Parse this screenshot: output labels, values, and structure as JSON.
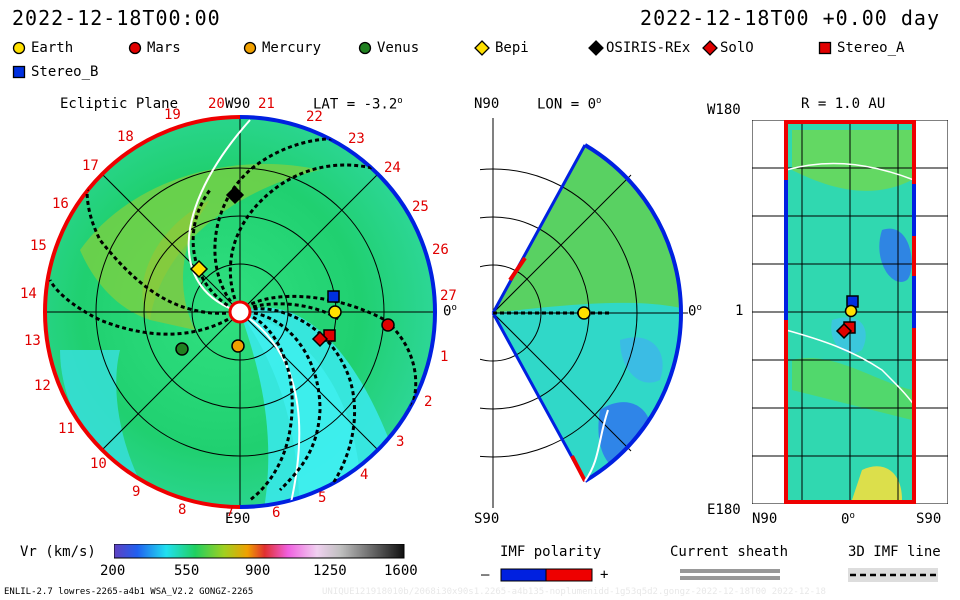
{
  "header": {
    "left_datetime": "2022-12-18T00:00",
    "right_datetime": "2022-12-18T00 +0.00 day"
  },
  "legend": {
    "items": [
      {
        "label": "Earth",
        "marker": "circle",
        "color": "#ffe000"
      },
      {
        "label": "Mars",
        "marker": "circle",
        "color": "#e00000"
      },
      {
        "label": "Mercury",
        "marker": "circle",
        "color": "#f0a000"
      },
      {
        "label": "Venus",
        "marker": "circle",
        "color": "#208020"
      },
      {
        "label": "Bepi",
        "marker": "diamond",
        "color": "#ffe000"
      },
      {
        "label": "OSIRIS-REx",
        "marker": "diamond",
        "color": "#000000"
      },
      {
        "label": "SolO",
        "marker": "diamond",
        "color": "#e00000"
      },
      {
        "label": "Stereo_A",
        "marker": "square",
        "color": "#e00000"
      },
      {
        "label": "Stereo_B",
        "marker": "square",
        "color": "#0030e0"
      }
    ]
  },
  "ecliptic": {
    "title": "Ecliptic Plane",
    "lat": "LAT = -3.2",
    "lat_unit": "o",
    "top_label": "W90",
    "bottom_label": "E90",
    "right_label": "0",
    "right_unit": "o",
    "sectors": [
      "19",
      "20",
      "21",
      "22",
      "23",
      "24",
      "25",
      "26",
      "27",
      "1",
      "2",
      "3",
      "4",
      "5",
      "6",
      "7",
      "8",
      "9",
      "10",
      "11",
      "12",
      "13",
      "14",
      "15",
      "16",
      "17",
      "18"
    ]
  },
  "meridional": {
    "lon": "LON = 0",
    "lon_unit": "o",
    "top_label": "N90",
    "bottom_label": "S90",
    "right_label": "0",
    "right_unit": "o"
  },
  "map": {
    "title": "R = 1.0 AU",
    "top_left": "W180",
    "bottom_left": "E180",
    "mid_left": "1",
    "x_labels": [
      "N90",
      "0",
      "S90"
    ],
    "x_mid_unit": "o"
  },
  "colorbar": {
    "label": "Vr (km/s)",
    "ticks": [
      "200",
      "550",
      "900",
      "1250",
      "1600"
    ]
  },
  "imf": {
    "title": "IMF polarity",
    "minus": "–",
    "plus": "+",
    "colors": {
      "negative": "#0020e0",
      "positive": "#ee0000"
    }
  },
  "sheath": {
    "title": "Current sheath"
  },
  "imf3d": {
    "title": "3D IMF line"
  },
  "footer": {
    "left": "ENLIL-2.7 lowres-2265-a4b1 WSA_V2.2 GONGZ-2265",
    "right": "UNIQUE121918010b/2068i30x90s1.2265-a4b135-noplumenidd-1g53q5d2.gongz-2022-12-18T00   2022-12-18"
  }
}
